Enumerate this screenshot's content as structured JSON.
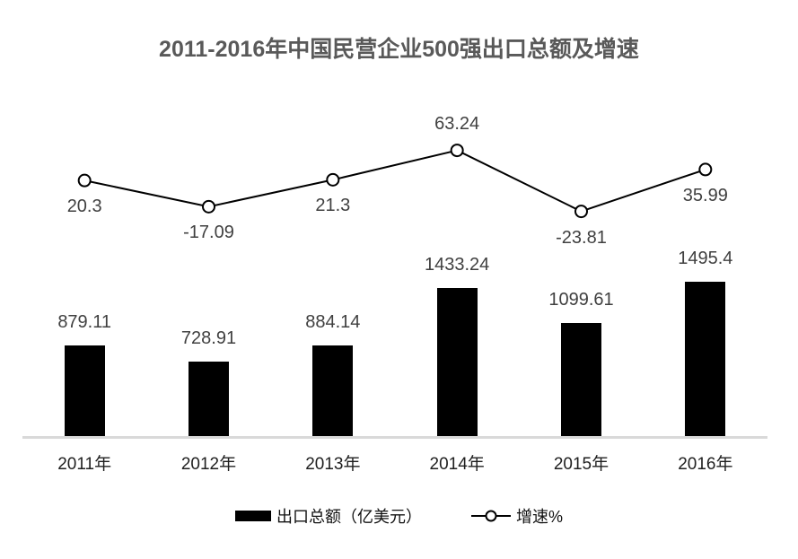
{
  "title": "2011-2016年中国民营企业500强出口总额及增速",
  "chart_data": {
    "type": "bar+line combo",
    "categories": [
      "2011年",
      "2012年",
      "2013年",
      "2014年",
      "2015年",
      "2016年"
    ],
    "series": [
      {
        "name": "出口总额（亿美元）",
        "type": "bar",
        "values": [
          879.11,
          728.91,
          884.14,
          1433.24,
          1099.61,
          1495.4
        ],
        "color": "#000000",
        "label_position": "outside-end-above"
      },
      {
        "name": "增速%",
        "type": "line",
        "values": [
          20.3,
          -17.09,
          21.3,
          63.24,
          -23.81,
          35.99
        ],
        "color": "#000000",
        "marker": "open-circle",
        "label_positions": [
          "below",
          "below",
          "below",
          "above",
          "below",
          "below"
        ]
      }
    ],
    "legend": [
      "出口总额（亿美元）",
      "增速%"
    ],
    "legend_position": "bottom",
    "grid": false,
    "y_axis_labels_visible": false,
    "axis_line_color": "#d9d9d9",
    "data_label_color": "#404040",
    "title_color": "#595959",
    "background_color": "#ffffff"
  }
}
